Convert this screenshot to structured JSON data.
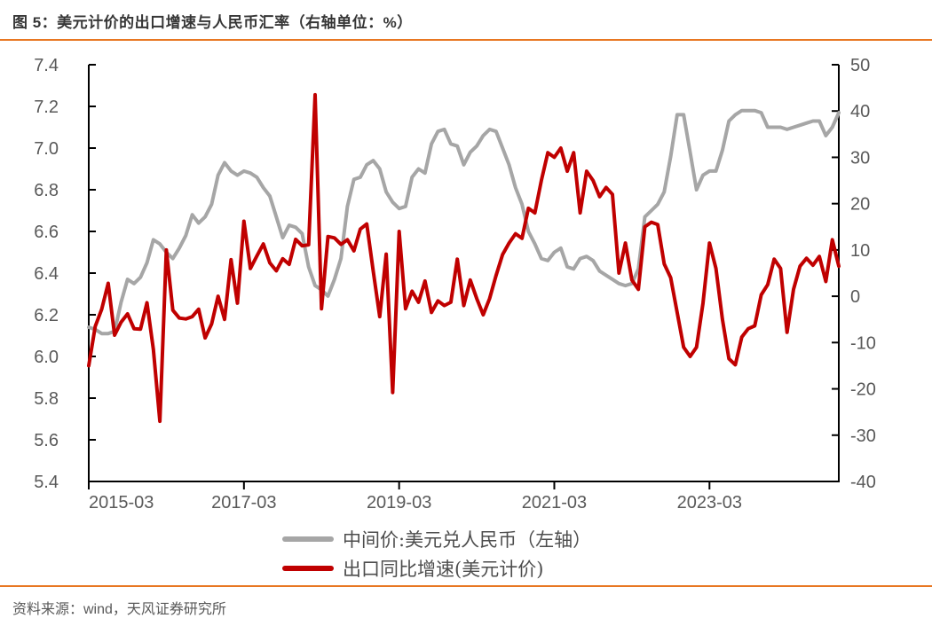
{
  "header": {
    "title": "图 5：美元计价的出口增速与人民币汇率（右轴单位：%）"
  },
  "footer": {
    "source": "资料来源：wind，天风证券研究所"
  },
  "colors": {
    "accent_orange": "#E87722",
    "series_parity": "#A6A6A6",
    "series_export": "#C00000",
    "axis_line": "#000000",
    "tick_label": "#595959",
    "title_text": "#363636",
    "legend_text": "#4d4d4d",
    "footer_text": "#595959"
  },
  "legend": [
    {
      "label": "中间价:美元兑人民币（左轴）",
      "color_key": "series_parity"
    },
    {
      "label": "出口同比增速(美元计价)",
      "color_key": "series_export"
    }
  ],
  "chart_data": {
    "type": "line",
    "title": "美元计价的出口增速与人民币汇率",
    "x_unit": "month",
    "x_start": "2015-03",
    "x_end": "2024-11",
    "x_tick_labels": [
      "2015-03",
      "2017-03",
      "2019-03",
      "2021-03",
      "2023-03"
    ],
    "x_tick_month_index": [
      0,
      24,
      48,
      72,
      96
    ],
    "grid": "off",
    "legend_position": "bottom",
    "left_axis": {
      "min": 5.4,
      "max": 7.4,
      "ticks": [
        "7.4",
        "7.2",
        "7.0",
        "6.8",
        "6.6",
        "6.4",
        "6.2",
        "6.0",
        "5.8",
        "5.6",
        "5.4"
      ]
    },
    "right_axis": {
      "min": -40,
      "max": 50,
      "unit": "%",
      "ticks": [
        "50",
        "40",
        "30",
        "20",
        "10",
        "0",
        "-10",
        "-20",
        "-30",
        "-40"
      ]
    },
    "series": [
      {
        "name": "中间价:美元兑人民币（左轴）",
        "axis": "left",
        "color_key": "series_parity",
        "values": [
          6.14,
          6.13,
          6.11,
          6.11,
          6.12,
          6.26,
          6.37,
          6.35,
          6.38,
          6.45,
          6.56,
          6.54,
          6.5,
          6.47,
          6.52,
          6.58,
          6.68,
          6.64,
          6.67,
          6.73,
          6.87,
          6.93,
          6.89,
          6.87,
          6.89,
          6.88,
          6.86,
          6.81,
          6.77,
          6.67,
          6.57,
          6.63,
          6.62,
          6.59,
          6.43,
          6.34,
          6.32,
          6.29,
          6.37,
          6.47,
          6.72,
          6.85,
          6.86,
          6.92,
          6.94,
          6.9,
          6.79,
          6.74,
          6.71,
          6.72,
          6.86,
          6.9,
          6.88,
          7.02,
          7.08,
          7.09,
          7.02,
          7.01,
          6.92,
          6.98,
          7.01,
          7.06,
          7.09,
          7.08,
          7.0,
          6.92,
          6.81,
          6.73,
          6.6,
          6.54,
          6.47,
          6.46,
          6.5,
          6.52,
          6.43,
          6.42,
          6.47,
          6.48,
          6.46,
          6.41,
          6.39,
          6.37,
          6.35,
          6.34,
          6.35,
          6.42,
          6.67,
          6.7,
          6.73,
          6.79,
          6.96,
          7.16,
          7.16,
          6.98,
          6.8,
          6.87,
          6.89,
          6.89,
          6.99,
          7.13,
          7.16,
          7.18,
          7.18,
          7.18,
          7.17,
          7.1,
          7.1,
          7.1,
          7.09,
          7.1,
          7.11,
          7.12,
          7.13,
          7.13,
          7.06,
          7.1,
          7.17
        ]
      },
      {
        "name": "出口同比增速(美元计价)",
        "axis": "right",
        "color_key": "series_export",
        "values": [
          -15,
          -6.5,
          -2.8,
          2.8,
          -8.4,
          -5.6,
          -3.8,
          -7,
          -7.1,
          -1.4,
          -11.5,
          -27,
          10,
          -3,
          -4.7,
          -4.9,
          -4.4,
          -2.8,
          -9,
          -6,
          0,
          -5,
          7.9,
          -1.5,
          16.2,
          6,
          8.7,
          11.3,
          7.2,
          5.5,
          8.1,
          6.9,
          12.3,
          10.9,
          11.1,
          43.5,
          -2.7,
          12.9,
          12.6,
          11.2,
          12.2,
          9.8,
          14.5,
          15.6,
          5.4,
          -4.4,
          9.1,
          -20.8,
          14,
          -2.7,
          1.1,
          -1.3,
          3.3,
          -3.5,
          -1,
          -2,
          -1.3,
          8,
          -2,
          3.5,
          -0.5,
          -4,
          -0.5,
          4.5,
          9,
          11.5,
          13.5,
          12.5,
          19,
          18,
          25,
          31,
          30,
          32,
          27,
          31,
          18,
          27,
          25,
          21.5,
          23.5,
          22,
          5,
          11.5,
          3.5,
          1.5,
          15,
          16,
          15.5,
          7,
          4,
          -3.5,
          -11,
          -13,
          -11,
          -1.5,
          11.5,
          6,
          -5,
          -13.5,
          -14.8,
          -8.8,
          -7,
          -6.4,
          0.3,
          2.5,
          8,
          6,
          -7.8,
          1.5,
          6.5,
          8.2,
          6.7,
          8.6,
          3.2,
          12.2,
          6.5
        ]
      }
    ]
  }
}
